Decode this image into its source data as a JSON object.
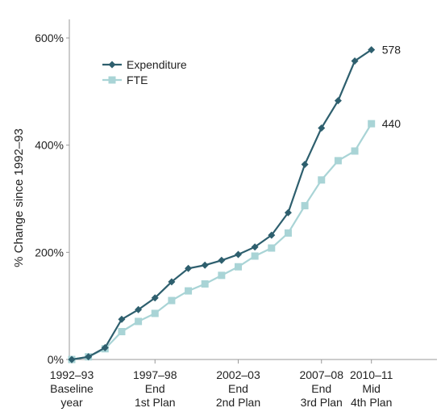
{
  "chart_data": {
    "type": "line",
    "ylabel": "% Change since 1992–93",
    "ylim": [
      0,
      600
    ],
    "yticks": [
      {
        "value": 0,
        "label": "0%"
      },
      {
        "value": 200,
        "label": "200%"
      },
      {
        "value": 400,
        "label": "400%"
      },
      {
        "value": 600,
        "label": "600%"
      }
    ],
    "xticks": [
      {
        "index": 0,
        "lines": [
          "1992–93",
          "Baseline",
          "year"
        ]
      },
      {
        "index": 5,
        "lines": [
          "1997–98",
          "End",
          "1st Plan"
        ]
      },
      {
        "index": 10,
        "lines": [
          "2002–03",
          "End",
          "2nd Plan"
        ]
      },
      {
        "index": 15,
        "lines": [
          "2007–08",
          "End",
          "3rd Plan"
        ]
      },
      {
        "index": 18,
        "lines": [
          "2010–11",
          "Mid",
          "4th Plan"
        ]
      }
    ],
    "legend_position": "top-left",
    "series": [
      {
        "name": "Expenditure",
        "color": "#2e5f6e",
        "marker": "diamond",
        "end_label": "578",
        "values": [
          0,
          5,
          22,
          75,
          93,
          115,
          145,
          170,
          176,
          185,
          196,
          210,
          232,
          274,
          364,
          432,
          483,
          557,
          578
        ]
      },
      {
        "name": "FTE",
        "color": "#a9d4d6",
        "marker": "square",
        "end_label": "440",
        "values": [
          0,
          5,
          20,
          52,
          71,
          86,
          110,
          128,
          141,
          157,
          173,
          193,
          208,
          236,
          287,
          335,
          371,
          389,
          440
        ]
      }
    ]
  }
}
